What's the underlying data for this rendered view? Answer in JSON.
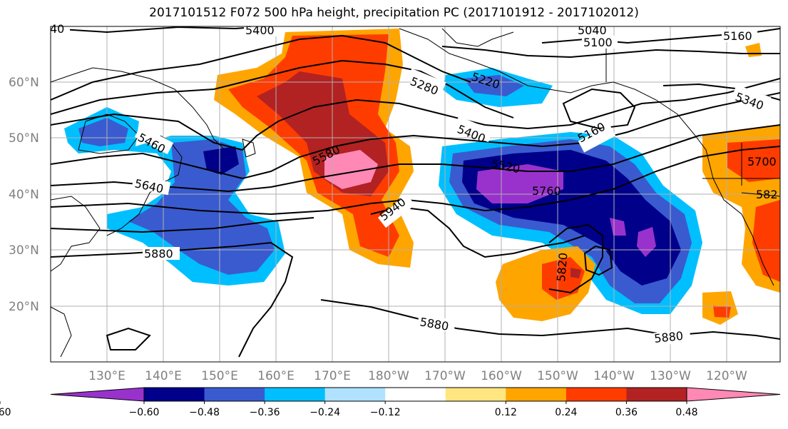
{
  "title": "2017101512 F072 500 hPa height, precipitation PC (2017101912 - 2017102012)",
  "lat_labels": [
    "60°N",
    "50°N",
    "40°N",
    "30°N",
    "20°N"
  ],
  "lon_labels": [
    "130°E",
    "140°E",
    "150°E",
    "160°E",
    "170°E",
    "180°W",
    "170°W",
    "160°W",
    "150°W",
    "140°W",
    "130°W",
    "120°W"
  ],
  "contour_labels": [
    "40",
    "5400",
    "5040",
    "5100",
    "5160",
    "5220",
    "5280",
    "5340",
    "5400",
    "5160",
    "5460",
    "5580",
    "5520",
    "5640",
    "5760",
    "5700",
    "5940",
    "5820",
    "5880",
    "5820",
    "5880",
    "5880",
    "582"
  ],
  "colorbar": {
    "tick_labels": [
      "−0.60",
      "−0.48",
      "−0.36",
      "−0.24",
      "−0.12",
      "0.12",
      "0.24",
      "0.36",
      "0.48",
      "0.60"
    ],
    "colors": [
      "#9932cc",
      "#00008b",
      "#3a5bcf",
      "#00bfff",
      "#b0e2ff",
      "#ffffff",
      "#ffe680",
      "#ffa500",
      "#ff3c00",
      "#b22222",
      "#ff88b4"
    ]
  },
  "colors": {
    "contour": "#000000",
    "grid": "#b0b0b0",
    "coast": "#000000"
  }
}
